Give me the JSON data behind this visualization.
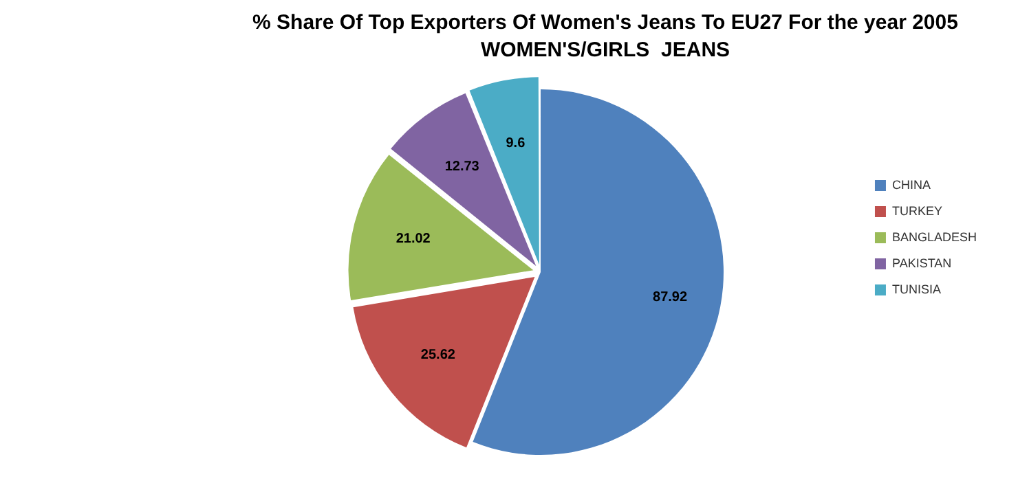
{
  "chart_data": {
    "type": "pie",
    "title": "% Share Of Top Exporters Of Women's Jeans To EU27 For the year 2005",
    "subtitle": "WOMEN'S/GIRLS  JEANS",
    "categories": [
      "CHINA",
      "TURKEY",
      "BANGLADESH",
      "PAKISTAN",
      "TUNISIA"
    ],
    "values": [
      87.92,
      25.62,
      21.02,
      12.73,
      9.6
    ],
    "colors": [
      "#4f81bd",
      "#c0504d",
      "#9bbb59",
      "#8064a2",
      "#4bacc6"
    ],
    "data_labels": true,
    "legend": "right"
  }
}
